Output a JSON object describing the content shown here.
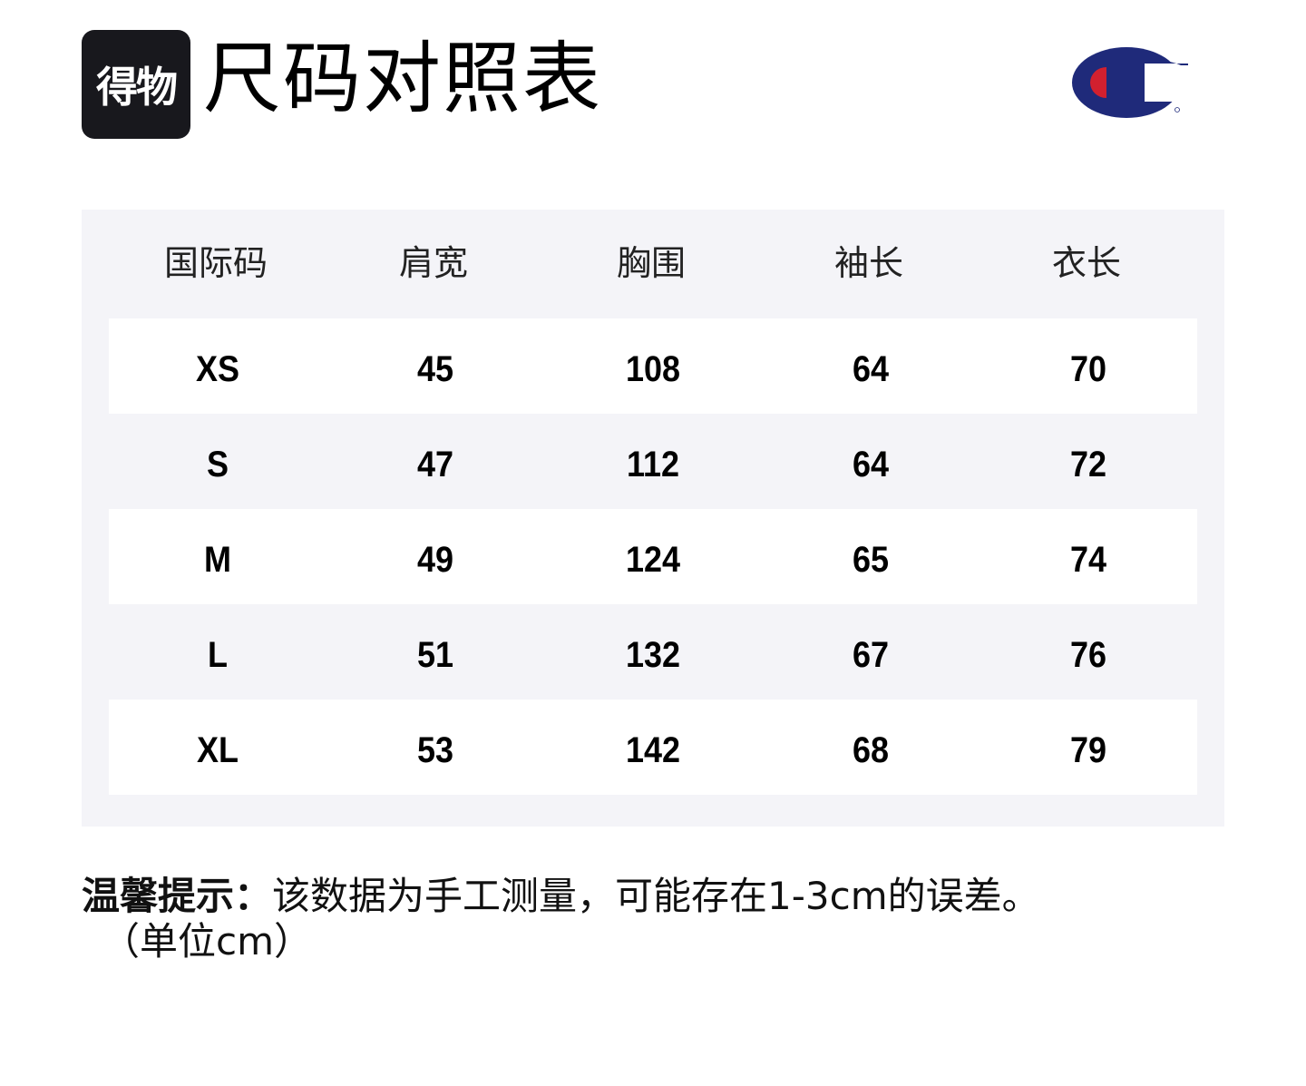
{
  "header": {
    "brand_logo_text": "得物",
    "title": "尺码对照表",
    "brand_colors": {
      "navy": "#1f2a7a",
      "red": "#d2202f"
    }
  },
  "table": {
    "columns": [
      "国际码",
      "肩宽",
      "胸围",
      "袖长",
      "衣长"
    ],
    "rows": [
      [
        "XS",
        "45",
        "108",
        "64",
        "70"
      ],
      [
        "S",
        "47",
        "112",
        "64",
        "72"
      ],
      [
        "M",
        "49",
        "124",
        "65",
        "74"
      ],
      [
        "L",
        "51",
        "132",
        "67",
        "76"
      ],
      [
        "XL",
        "53",
        "142",
        "68",
        "79"
      ]
    ]
  },
  "note": {
    "label": "温馨提示：",
    "text": "该数据为手工测量，可能存在1-3cm的误差。",
    "unit": "（单位cm）"
  }
}
